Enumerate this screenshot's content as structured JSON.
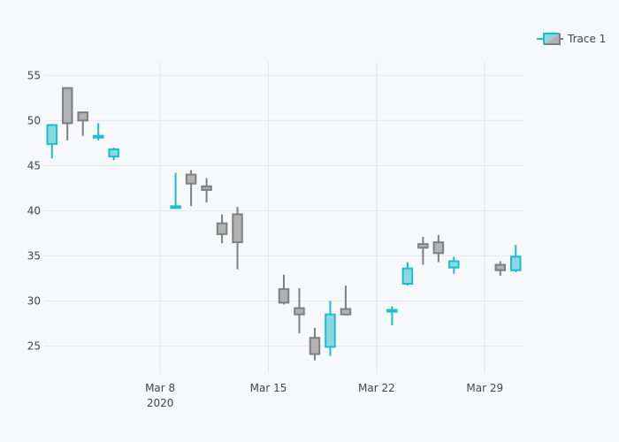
{
  "chart_data": {
    "type": "candlestick",
    "title": "",
    "xlabel": "",
    "ylabel": "",
    "x_axis": {
      "range": [
        "2020-03-01",
        "2020-03-31"
      ],
      "ticks": [
        {
          "date": "2020-03-08",
          "label": "Mar 8",
          "sublabel": "2020"
        },
        {
          "date": "2020-03-15",
          "label": "Mar 15",
          "sublabel": ""
        },
        {
          "date": "2020-03-22",
          "label": "Mar 22",
          "sublabel": ""
        },
        {
          "date": "2020-03-29",
          "label": "Mar 29",
          "sublabel": ""
        }
      ]
    },
    "y_axis": {
      "range": [
        22,
        56.5
      ],
      "ticks": [
        25,
        30,
        35,
        40,
        45,
        50,
        55
      ]
    },
    "grid": true,
    "legend": {
      "position": "top-right",
      "entries": [
        "Trace 1"
      ]
    },
    "colors": {
      "increasing_line": "#17becf",
      "increasing_fill": "#8ad8e4",
      "decreasing_line": "#7f7f7f",
      "decreasing_fill": "#b2b2b2",
      "grid": "#e5e6ea",
      "background": "#f7f8fa"
    },
    "series": [
      {
        "name": "Trace 1",
        "points": [
          {
            "date": "2020-03-01",
            "open": 47.4,
            "high": 49.6,
            "low": 45.8,
            "close": 49.5
          },
          {
            "date": "2020-03-02",
            "open": 53.6,
            "high": 53.6,
            "low": 47.8,
            "close": 49.7
          },
          {
            "date": "2020-03-03",
            "open": 50.9,
            "high": 50.9,
            "low": 48.3,
            "close": 50.0
          },
          {
            "date": "2020-03-04",
            "open": 48.1,
            "high": 49.7,
            "low": 47.8,
            "close": 48.3
          },
          {
            "date": "2020-03-05",
            "open": 46.0,
            "high": 47.0,
            "low": 45.6,
            "close": 46.8
          },
          {
            "date": "2020-03-09",
            "open": 40.3,
            "high": 44.2,
            "low": 40.3,
            "close": 40.5
          },
          {
            "date": "2020-03-10",
            "open": 44.0,
            "high": 44.5,
            "low": 40.5,
            "close": 43.0
          },
          {
            "date": "2020-03-11",
            "open": 42.7,
            "high": 43.6,
            "low": 40.9,
            "close": 42.3
          },
          {
            "date": "2020-03-12",
            "open": 38.6,
            "high": 39.6,
            "low": 36.4,
            "close": 37.4
          },
          {
            "date": "2020-03-13",
            "open": 39.6,
            "high": 40.4,
            "low": 33.5,
            "close": 36.5
          },
          {
            "date": "2020-03-16",
            "open": 31.3,
            "high": 32.9,
            "low": 29.6,
            "close": 29.8
          },
          {
            "date": "2020-03-17",
            "open": 29.2,
            "high": 31.4,
            "low": 26.4,
            "close": 28.5
          },
          {
            "date": "2020-03-18",
            "open": 25.9,
            "high": 27.0,
            "low": 23.4,
            "close": 24.1
          },
          {
            "date": "2020-03-19",
            "open": 24.9,
            "high": 30.0,
            "low": 23.9,
            "close": 28.5
          },
          {
            "date": "2020-03-20",
            "open": 29.1,
            "high": 31.7,
            "low": 28.4,
            "close": 28.5
          },
          {
            "date": "2020-03-23",
            "open": 28.8,
            "high": 29.4,
            "low": 27.3,
            "close": 29.0
          },
          {
            "date": "2020-03-24",
            "open": 31.9,
            "high": 34.3,
            "low": 31.7,
            "close": 33.6
          },
          {
            "date": "2020-03-25",
            "open": 36.3,
            "high": 37.1,
            "low": 34.0,
            "close": 35.9
          },
          {
            "date": "2020-03-26",
            "open": 36.5,
            "high": 37.3,
            "low": 34.3,
            "close": 35.3
          },
          {
            "date": "2020-03-27",
            "open": 33.7,
            "high": 34.9,
            "low": 33.0,
            "close": 34.4
          },
          {
            "date": "2020-03-30",
            "open": 34.0,
            "high": 34.4,
            "low": 32.8,
            "close": 33.4
          },
          {
            "date": "2020-03-31",
            "open": 33.4,
            "high": 36.2,
            "low": 33.2,
            "close": 34.9
          }
        ]
      }
    ]
  }
}
